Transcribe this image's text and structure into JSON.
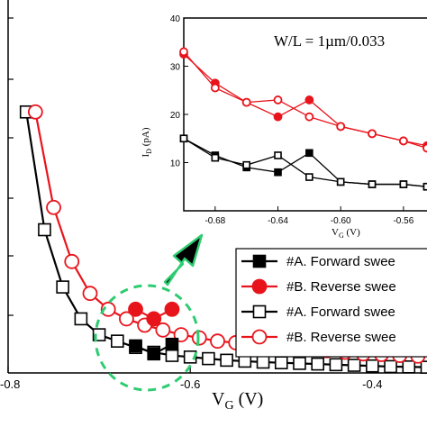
{
  "chart_data": [
    {
      "type": "line",
      "xlabel_base": "V",
      "xlabel_sub": "G",
      "xlabel_unit": " (V)",
      "xlim": [
        -0.8,
        -0.34
      ],
      "ylim": [
        0,
        1.2
      ],
      "xticks": [
        -0.8,
        -0.6,
        -0.4
      ],
      "xtick_labels": [
        "-0.8",
        "-0.6",
        "-0.4"
      ],
      "legend_position": "bottom-right",
      "series": [
        {
          "name": "#A. Forward swee",
          "color": "#000000",
          "marker": "square-filled",
          "x": [
            -0.66,
            -0.64,
            -0.62
          ],
          "y": [
            0.085,
            0.06,
            0.09
          ]
        },
        {
          "name": "#B. Reverse swee",
          "color": "#e8141c",
          "marker": "circle-filled",
          "x": [
            -0.66,
            -0.64,
            -0.62
          ],
          "y": [
            0.2,
            0.17,
            0.2
          ]
        },
        {
          "name": "#A. Forward swee",
          "color": "#000000",
          "marker": "square-open",
          "x": [
            -0.78,
            -0.76,
            -0.74,
            -0.72,
            -0.7,
            -0.68,
            -0.66,
            -0.64,
            -0.62,
            -0.6,
            -0.58,
            -0.56,
            -0.54,
            -0.52,
            -0.5,
            -0.48,
            -0.46,
            -0.44,
            -0.42,
            -0.4,
            -0.38,
            -0.36,
            -0.34
          ],
          "y": [
            0.82,
            0.45,
            0.27,
            0.17,
            0.12,
            0.1,
            0.08,
            0.065,
            0.055,
            0.05,
            0.045,
            0.04,
            0.037,
            0.034,
            0.032,
            0.03,
            0.028,
            0.026,
            0.024,
            0.022,
            0.02,
            0.019,
            0.018
          ]
        },
        {
          "name": "#B. Reverse swee",
          "color": "#e8141c",
          "marker": "circle-open",
          "x": [
            -0.77,
            -0.75,
            -0.73,
            -0.71,
            -0.69,
            -0.67,
            -0.65,
            -0.63,
            -0.61,
            -0.59,
            -0.57,
            -0.55,
            -0.53,
            -0.51,
            -0.49,
            -0.47,
            -0.45,
            -0.43,
            -0.41,
            -0.39,
            -0.37,
            -0.35
          ],
          "y": [
            0.82,
            0.52,
            0.35,
            0.25,
            0.2,
            0.17,
            0.15,
            0.135,
            0.12,
            0.11,
            0.1,
            0.095,
            0.09,
            0.085,
            0.08,
            0.075,
            0.07,
            0.065,
            0.06,
            0.058,
            0.055,
            0.053
          ]
        }
      ]
    },
    {
      "type": "line",
      "annotation": "W/L = 1µm/0.033",
      "xlabel_base": "V",
      "xlabel_sub": "G",
      "xlabel_unit": " (V)",
      "ylabel_base": "I",
      "ylabel_sub": "D",
      "ylabel_unit": " (pA)",
      "xlim": [
        -0.7,
        -0.545
      ],
      "ylim": [
        0,
        40
      ],
      "xticks": [
        -0.68,
        -0.64,
        -0.6,
        -0.56
      ],
      "xtick_labels": [
        "-0.68",
        "-0.64",
        "-0.60",
        "-0.56"
      ],
      "yticks": [
        10,
        20,
        30,
        40
      ],
      "ytick_labels": [
        "10",
        "20",
        "30",
        "40"
      ],
      "series": [
        {
          "name": "#B. Reverse swee",
          "color": "#e8141c",
          "marker": "circle-filled",
          "x": [
            -0.7,
            -0.68,
            -0.66,
            -0.64,
            -0.62,
            -0.6,
            -0.58,
            -0.56,
            -0.545
          ],
          "y": [
            32.5,
            26.5,
            22.5,
            19.5,
            23.0,
            17.5,
            16.0,
            14.5,
            13.5
          ]
        },
        {
          "name": "#B. Reverse swee",
          "color": "#e8141c",
          "marker": "circle-open",
          "x": [
            -0.7,
            -0.68,
            -0.66,
            -0.64,
            -0.62,
            -0.6,
            -0.58,
            -0.56,
            -0.545
          ],
          "y": [
            33.0,
            25.5,
            22.5,
            23.0,
            19.5,
            17.5,
            16.0,
            14.5,
            13.0
          ]
        },
        {
          "name": "#A. Forward swee",
          "color": "#000000",
          "marker": "square-filled",
          "x": [
            -0.7,
            -0.68,
            -0.66,
            -0.64,
            -0.62,
            -0.6,
            -0.58,
            -0.56,
            -0.545
          ],
          "y": [
            15.0,
            11.5,
            9.0,
            8.0,
            12.0,
            6.0,
            5.5,
            5.5,
            5.0
          ]
        },
        {
          "name": "#A. Forward swee",
          "color": "#000000",
          "marker": "square-open",
          "x": [
            -0.7,
            -0.68,
            -0.66,
            -0.64,
            -0.62,
            -0.6,
            -0.58,
            -0.56,
            -0.545
          ],
          "y": [
            15.0,
            11.0,
            9.5,
            11.5,
            7.0,
            6.0,
            5.5,
            5.5,
            5.0
          ]
        }
      ]
    }
  ]
}
